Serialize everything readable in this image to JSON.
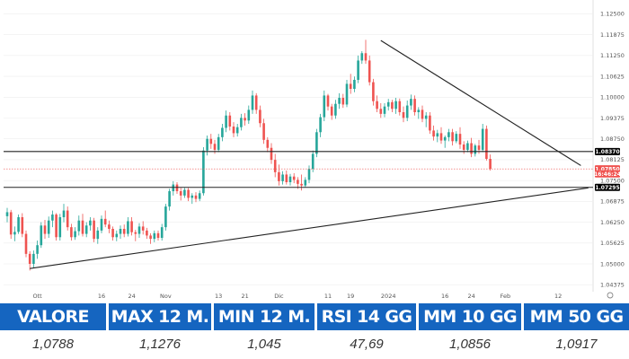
{
  "chart_data": {
    "type": "candlestick",
    "y_ticks": [
      "1.04375",
      "1.05000",
      "1.05625",
      "1.06250",
      "1.06875",
      "1.07500",
      "1.08125",
      "1.08750",
      "1.09375",
      "1.10000",
      "1.10625",
      "1.11250",
      "1.11875",
      "1.12500"
    ],
    "y_tick_values": [
      1.04375,
      1.05,
      1.05625,
      1.0625,
      1.06875,
      1.075,
      1.08125,
      1.0875,
      1.09375,
      1.1,
      1.10625,
      1.1125,
      1.11875,
      1.125
    ],
    "ylim": [
      1.043,
      1.127
    ],
    "x_ticks": [
      {
        "label": "Ott",
        "index": 8
      },
      {
        "label": "16",
        "index": 25
      },
      {
        "label": "24",
        "index": 33
      },
      {
        "label": "Nov",
        "index": 42
      },
      {
        "label": "13",
        "index": 56
      },
      {
        "label": "21",
        "index": 63
      },
      {
        "label": "Dic",
        "index": 72
      },
      {
        "label": "11",
        "index": 85
      },
      {
        "label": "19",
        "index": 91
      },
      {
        "label": "2024",
        "index": 101
      },
      {
        "label": "16",
        "index": 116
      },
      {
        "label": "24",
        "index": 123
      },
      {
        "label": "Feb",
        "index": 132
      },
      {
        "label": "12",
        "index": 146
      }
    ],
    "candles": [
      [
        1.0643,
        1.0668,
        1.0625,
        1.0655
      ],
      [
        1.0655,
        1.0662,
        1.0575,
        1.0588
      ],
      [
        1.0588,
        1.0612,
        1.0568,
        1.0596
      ],
      [
        1.0596,
        1.0648,
        1.059,
        1.064
      ],
      [
        1.064,
        1.0652,
        1.058,
        1.059
      ],
      [
        1.059,
        1.06,
        1.052,
        1.053
      ],
      [
        1.053,
        1.0538,
        1.048,
        1.05
      ],
      [
        1.05,
        1.054,
        1.0488,
        1.053
      ],
      [
        1.053,
        1.057,
        1.0515,
        1.0556
      ],
      [
        1.0556,
        1.0625,
        1.0548,
        1.0615
      ],
      [
        1.0615,
        1.0632,
        1.0575,
        1.059
      ],
      [
        1.059,
        1.0642,
        1.0578,
        1.063
      ],
      [
        1.063,
        1.066,
        1.061,
        1.0648
      ],
      [
        1.0648,
        1.0652,
        1.057,
        1.058
      ],
      [
        1.058,
        1.065,
        1.057,
        1.064
      ],
      [
        1.064,
        1.068,
        1.0625,
        1.066
      ],
      [
        1.066,
        1.0672,
        1.06,
        1.061
      ],
      [
        1.061,
        1.062,
        1.057,
        1.058
      ],
      [
        1.058,
        1.061,
        1.0572,
        1.0598
      ],
      [
        1.0598,
        1.0645,
        1.0585,
        1.063
      ],
      [
        1.063,
        1.065,
        1.0582,
        1.059
      ],
      [
        1.059,
        1.0625,
        1.058,
        1.0615
      ],
      [
        1.0615,
        1.064,
        1.06,
        1.063
      ],
      [
        1.063,
        1.0638,
        1.0565,
        1.0575
      ],
      [
        1.0575,
        1.061,
        1.056,
        1.06
      ],
      [
        1.06,
        1.0645,
        1.0592,
        1.0635
      ],
      [
        1.0635,
        1.066,
        1.061,
        1.0618
      ],
      [
        1.0618,
        1.063,
        1.0592,
        1.0605
      ],
      [
        1.0605,
        1.0612,
        1.057,
        1.058
      ],
      [
        1.058,
        1.06,
        1.0568,
        1.059
      ],
      [
        1.059,
        1.0615,
        1.0575,
        1.0605
      ],
      [
        1.0605,
        1.0618,
        1.058,
        1.059
      ],
      [
        1.059,
        1.064,
        1.0582,
        1.0628
      ],
      [
        1.0628,
        1.064,
        1.0585,
        1.0595
      ],
      [
        1.0595,
        1.0602,
        1.0568,
        1.059
      ],
      [
        1.059,
        1.0622,
        1.0578,
        1.0612
      ],
      [
        1.0612,
        1.0628,
        1.0588,
        1.06
      ],
      [
        1.06,
        1.0608,
        1.0575,
        1.0585
      ],
      [
        1.0585,
        1.0592,
        1.056,
        1.0575
      ],
      [
        1.0575,
        1.06,
        1.0565,
        1.0592
      ],
      [
        1.0592,
        1.06,
        1.057,
        1.0578
      ],
      [
        1.0578,
        1.062,
        1.057,
        1.061
      ],
      [
        1.061,
        1.068,
        1.06,
        1.0672
      ],
      [
        1.0672,
        1.0725,
        1.066,
        1.0718
      ],
      [
        1.0718,
        1.0748,
        1.0705,
        1.0738
      ],
      [
        1.0738,
        1.0745,
        1.071,
        1.0718
      ],
      [
        1.0718,
        1.0728,
        1.069,
        1.0705
      ],
      [
        1.0705,
        1.0728,
        1.0698,
        1.0722
      ],
      [
        1.0722,
        1.0728,
        1.0688,
        1.0698
      ],
      [
        1.0698,
        1.0712,
        1.068,
        1.0705
      ],
      [
        1.0705,
        1.0715,
        1.0685,
        1.0695
      ],
      [
        1.0695,
        1.072,
        1.0688,
        1.0712
      ],
      [
        1.0712,
        1.085,
        1.0705,
        1.084
      ],
      [
        1.084,
        1.0885,
        1.0825,
        1.0875
      ],
      [
        1.0875,
        1.089,
        1.0845,
        1.086
      ],
      [
        1.086,
        1.0872,
        1.083,
        1.0842
      ],
      [
        1.0842,
        1.089,
        1.0835,
        1.088
      ],
      [
        1.088,
        1.092,
        1.0868,
        1.0908
      ],
      [
        1.0908,
        1.096,
        1.0895,
        1.0945
      ],
      [
        1.0945,
        1.0955,
        1.09,
        1.0912
      ],
      [
        1.0912,
        1.0925,
        1.088,
        1.0892
      ],
      [
        1.0892,
        1.092,
        1.0882,
        1.091
      ],
      [
        1.091,
        1.095,
        1.09,
        1.0938
      ],
      [
        1.0938,
        1.0952,
        1.0915,
        1.093
      ],
      [
        1.093,
        1.0975,
        1.092,
        1.0962
      ],
      [
        1.0962,
        1.102,
        1.095,
        1.1005
      ],
      [
        1.1005,
        1.1012,
        1.095,
        1.0962
      ],
      [
        1.0962,
        1.0975,
        1.091,
        1.0922
      ],
      [
        1.0922,
        1.0935,
        1.086,
        1.0872
      ],
      [
        1.0872,
        1.088,
        1.0835,
        1.0848
      ],
      [
        1.0848,
        1.0862,
        1.08,
        1.0812
      ],
      [
        1.0812,
        1.083,
        1.076,
        1.0775
      ],
      [
        1.0775,
        1.0798,
        1.0735,
        1.0748
      ],
      [
        1.0748,
        1.0778,
        1.0738,
        1.0768
      ],
      [
        1.0768,
        1.078,
        1.0738,
        1.0745
      ],
      [
        1.0745,
        1.077,
        1.0735,
        1.0762
      ],
      [
        1.0762,
        1.0772,
        1.0742,
        1.0752
      ],
      [
        1.0752,
        1.076,
        1.0725,
        1.074
      ],
      [
        1.074,
        1.0768,
        1.072,
        1.0735
      ],
      [
        1.0735,
        1.076,
        1.073,
        1.0752
      ],
      [
        1.0752,
        1.0795,
        1.0742,
        1.0785
      ],
      [
        1.0785,
        1.084,
        1.0775,
        1.083
      ],
      [
        1.083,
        1.0905,
        1.082,
        1.0895
      ],
      [
        1.0895,
        1.095,
        1.088,
        1.094
      ],
      [
        1.094,
        1.102,
        1.0928,
        1.1005
      ],
      [
        1.1005,
        1.101,
        1.096,
        1.0972
      ],
      [
        1.0972,
        1.098,
        1.0932,
        1.0945
      ],
      [
        1.0945,
        1.0992,
        1.0935,
        1.098
      ],
      [
        1.098,
        1.1012,
        1.0965,
        1.0998
      ],
      [
        1.0998,
        1.101,
        1.0968,
        1.0978
      ],
      [
        1.0978,
        1.1052,
        1.097,
        1.104
      ],
      [
        1.104,
        1.107,
        1.101,
        1.1025
      ],
      [
        1.1025,
        1.1062,
        1.1015,
        1.1052
      ],
      [
        1.1052,
        1.1125,
        1.1042,
        1.111
      ],
      [
        1.111,
        1.1138,
        1.11,
        1.1132
      ],
      [
        1.1132,
        1.1172,
        1.11,
        1.111
      ],
      [
        1.111,
        1.1125,
        1.1035,
        1.1045
      ],
      [
        1.1045,
        1.1055,
        1.0975,
        1.0988
      ],
      [
        1.0988,
        1.1005,
        1.0955,
        1.0965
      ],
      [
        1.0965,
        1.0982,
        1.0938,
        1.095
      ],
      [
        1.095,
        1.0982,
        1.094,
        1.0972
      ],
      [
        1.0972,
        1.0995,
        1.096,
        1.0985
      ],
      [
        1.0985,
        1.0992,
        1.0955,
        1.0965
      ],
      [
        1.0965,
        1.0998,
        1.095,
        1.0988
      ],
      [
        1.0988,
        1.0996,
        1.0945,
        1.0955
      ],
      [
        1.0955,
        1.0972,
        1.0925,
        1.0938
      ],
      [
        1.0938,
        1.099,
        1.0928,
        1.0975
      ],
      [
        1.0975,
        1.1008,
        1.0962,
        1.0995
      ],
      [
        1.0995,
        1.1005,
        1.0945,
        1.0955
      ],
      [
        1.0955,
        1.097,
        1.0935,
        1.0962
      ],
      [
        1.0962,
        1.0975,
        1.0925,
        1.0935
      ],
      [
        1.0935,
        1.0955,
        1.091,
        1.0945
      ],
      [
        1.0945,
        1.0955,
        1.089,
        1.09
      ],
      [
        1.09,
        1.0915,
        1.087,
        1.0882
      ],
      [
        1.0882,
        1.0902,
        1.0865,
        1.0892
      ],
      [
        1.0892,
        1.091,
        1.086,
        1.087
      ],
      [
        1.087,
        1.0885,
        1.0848,
        1.088
      ],
      [
        1.088,
        1.0905,
        1.0868,
        1.0895
      ],
      [
        1.0895,
        1.0905,
        1.0855,
        1.0868
      ],
      [
        1.0868,
        1.0898,
        1.0862,
        1.089
      ],
      [
        1.089,
        1.091,
        1.0845,
        1.0858
      ],
      [
        1.0858,
        1.0868,
        1.083,
        1.0842
      ],
      [
        1.0842,
        1.087,
        1.0835,
        1.0862
      ],
      [
        1.0862,
        1.0878,
        1.082,
        1.083
      ],
      [
        1.083,
        1.086,
        1.0822,
        1.0855
      ],
      [
        1.0855,
        1.0872,
        1.083,
        1.0842
      ],
      [
        1.0842,
        1.092,
        1.0835,
        1.0905
      ],
      [
        1.0905,
        1.0915,
        1.081,
        1.0815
      ],
      [
        1.0815,
        1.0828,
        1.078,
        1.0785
      ]
    ],
    "horizontal_levels": [
      1.0837,
      1.07295
    ],
    "current_price": 1.0785,
    "price_labels": [
      {
        "value": 1.0837,
        "text": "1.08370",
        "bg": "#000000",
        "fg": "#ffffff"
      },
      {
        "value": 1.0785,
        "text": "1.07850",
        "bg": "#ef5350",
        "fg": "#ffffff"
      },
      {
        "value": 1.077,
        "text": "16:46:24",
        "bg": "#ef5350",
        "fg": "#ffffff"
      },
      {
        "value": 1.07295,
        "text": "1.07295",
        "bg": "#000000",
        "fg": "#ffffff"
      }
    ],
    "trendlines": [
      {
        "from": [
          6,
          1.0486
        ],
        "to": [
          154,
          1.0728
        ]
      },
      {
        "from": [
          99,
          1.117
        ],
        "to": [
          152,
          1.0795
        ]
      }
    ],
    "colors": {
      "up": "#26a69a",
      "down": "#ef5350",
      "line": "#222222",
      "grid": "#eeeeee"
    }
  },
  "stats": [
    {
      "label": "VALORE",
      "value": "1,0788"
    },
    {
      "label": "MAX 12 M.",
      "value": "1,1276"
    },
    {
      "label": "MIN 12 M.",
      "value": "1,045"
    },
    {
      "label": "RSI 14 GG",
      "value": "47,69"
    },
    {
      "label": "MM 10 GG",
      "value": "1,0856"
    },
    {
      "label": "MM 50 GG",
      "value": "1,0917"
    }
  ],
  "header_color": "#1565c0"
}
